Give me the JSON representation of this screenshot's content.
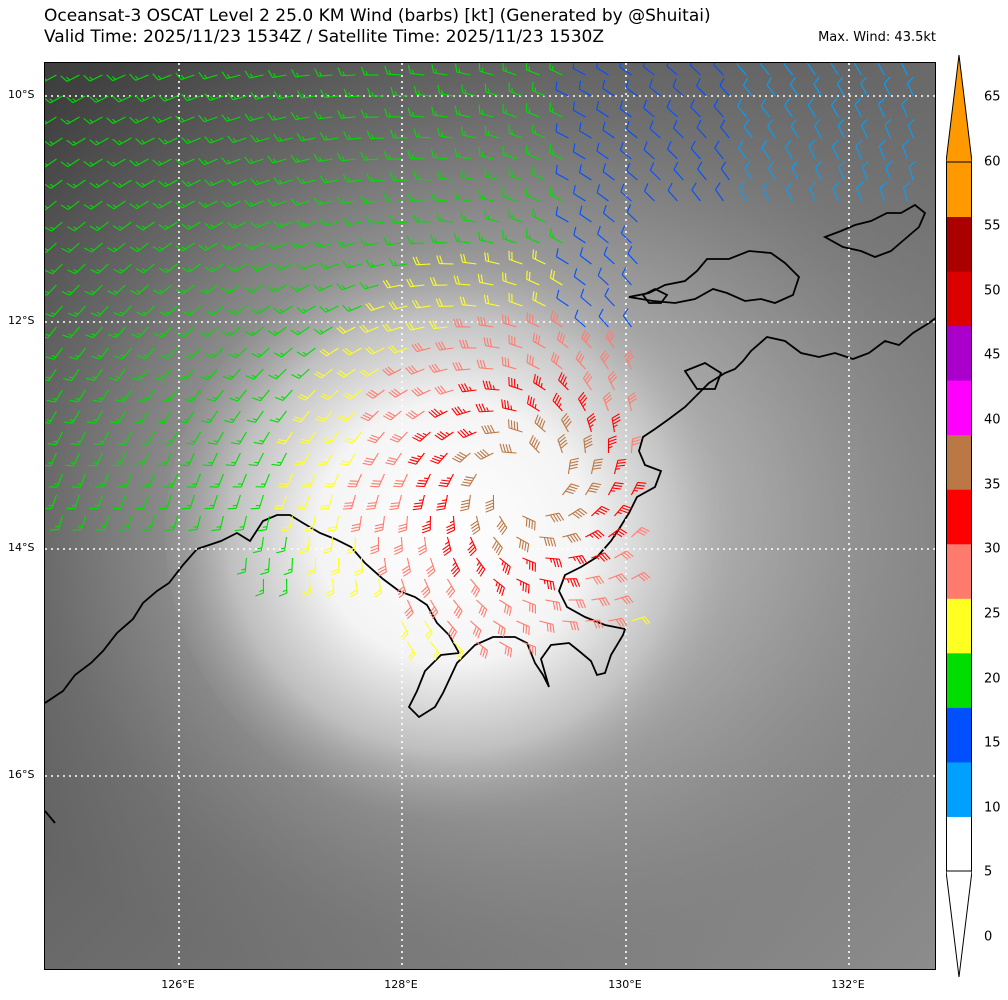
{
  "title": {
    "line1": "Oceansat-3 OSCAT Level 2 25.0 KM Wind (barbs) [kt] (Generated by @Shuitai)",
    "line2": "Valid Time: 2025/11/23 1534Z / Satellite Time: 2025/11/23 1530Z",
    "max_wind": "Max. Wind: 43.5kt"
  },
  "map": {
    "lat_labels": [
      "10°S",
      "12°S",
      "14°S",
      "16°S"
    ],
    "lon_labels": [
      "126°E",
      "128°E",
      "130°E",
      "132°E"
    ],
    "extent": {
      "lon": [
        124.8,
        132.8
      ],
      "lat": [
        -9.7,
        -17.7
      ]
    }
  },
  "colorbar": {
    "ticks": [
      "0",
      "5",
      "10",
      "15",
      "20",
      "25",
      "30",
      "35",
      "40",
      "45",
      "50",
      "55",
      "60",
      "65"
    ],
    "bins": [
      {
        "from": 0,
        "to": 5,
        "color": "#ffffff"
      },
      {
        "from": 5,
        "to": 10,
        "color": "#00a0ff"
      },
      {
        "from": 10,
        "to": 15,
        "color": "#0050ff"
      },
      {
        "from": 15,
        "to": 20,
        "color": "#00dd00"
      },
      {
        "from": 20,
        "to": 25,
        "color": "#ffff22"
      },
      {
        "from": 25,
        "to": 30,
        "color": "#ff7b6e"
      },
      {
        "from": 30,
        "to": 35,
        "color": "#ff0000"
      },
      {
        "from": 35,
        "to": 40,
        "color": "#bb7744"
      },
      {
        "from": 40,
        "to": 45,
        "color": "#ff00ff"
      },
      {
        "from": 45,
        "to": 50,
        "color": "#aa00cc"
      },
      {
        "from": 50,
        "to": 55,
        "color": "#dd0000"
      },
      {
        "from": 55,
        "to": 60,
        "color": "#aa0000"
      },
      {
        "from": 60,
        "to": 65,
        "color": "#ff9900"
      }
    ]
  }
}
